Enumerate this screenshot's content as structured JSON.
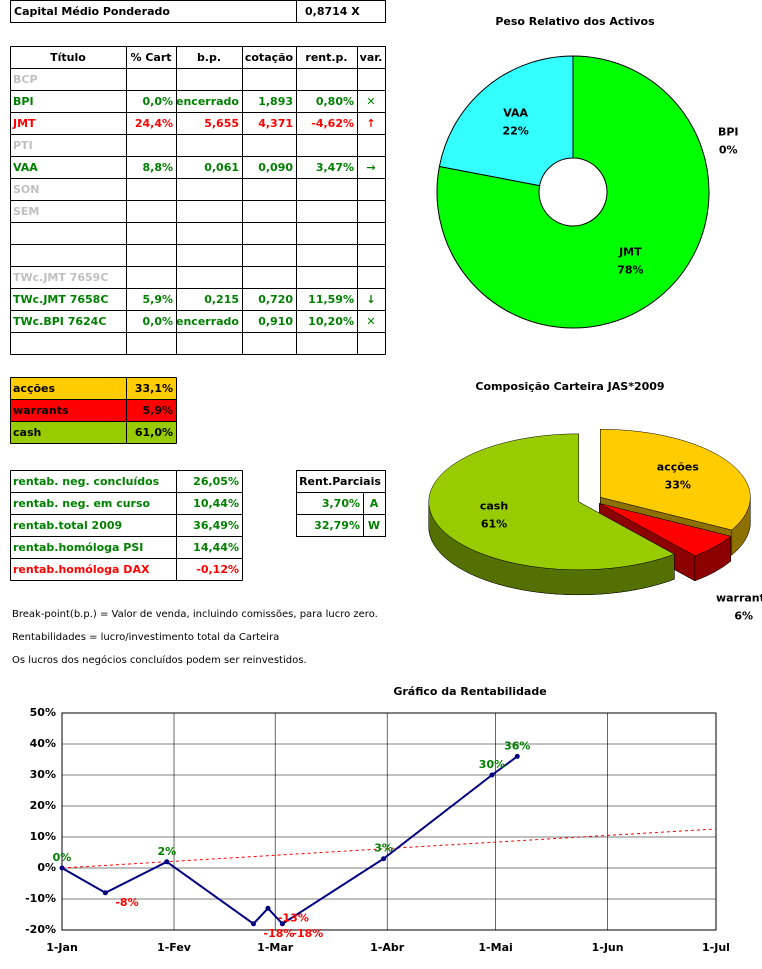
{
  "header": {
    "label": "Capital Médio Ponderado",
    "value": "0,8714 X"
  },
  "table": {
    "columns": [
      "Título",
      "% Cart",
      "b.p.",
      "cotação",
      "rent.p.",
      "var."
    ],
    "rows": [
      {
        "cells": [
          "BCP"
        ],
        "color": "#c0c0c0"
      },
      {
        "cells": [
          "BPI",
          "0,0%",
          "encerrado",
          "1,893",
          "0,80%",
          "✕"
        ],
        "color": "#008000"
      },
      {
        "cells": [
          "JMT",
          "24,4%",
          "5,655",
          "4,371",
          "-4,62%",
          "↑"
        ],
        "color": "#ff0000"
      },
      {
        "cells": [
          "PTI"
        ],
        "color": "#c0c0c0"
      },
      {
        "cells": [
          "VAA",
          "8,8%",
          "0,061",
          "0,090",
          "3,47%",
          "→"
        ],
        "color": "#008000"
      },
      {
        "cells": [
          "SON"
        ],
        "color": "#c0c0c0"
      },
      {
        "cells": [
          "SEM"
        ],
        "color": "#c0c0c0"
      },
      {
        "cells": []
      },
      {
        "cells": []
      },
      {
        "cells": [
          "TWc.JMT 7659C"
        ],
        "color": "#c0c0c0"
      },
      {
        "cells": [
          "TWc.JMT 7658C",
          "5,9%",
          "0,215",
          "0,720",
          "11,59%",
          "↓"
        ],
        "color": "#008000"
      },
      {
        "cells": [
          "TWc.BPI 7624C",
          "0,0%",
          "encerrado",
          "0,910",
          "10,20%",
          "✕"
        ],
        "color": "#008000"
      },
      {
        "cells": []
      }
    ]
  },
  "allocation": {
    "rows": [
      {
        "cells": [
          "acções",
          "33,1%"
        ],
        "color": "#ffcc00"
      },
      {
        "cells": [
          "warrants",
          "5,9%"
        ],
        "color": "#ff0000"
      },
      {
        "cells": [
          "cash",
          "61,0%"
        ],
        "color": "#99cc00"
      }
    ]
  },
  "returns": {
    "rows": [
      {
        "cells": [
          "rentab. neg. concluídos",
          "26,05%"
        ],
        "color": "#008000"
      },
      {
        "cells": [
          "rentab. neg. em curso",
          "10,44%"
        ],
        "color": "#008000"
      },
      {
        "cells": [
          "rentab.total 2009",
          "36,49%"
        ],
        "color": "#008000"
      },
      {
        "cells": [
          "rentab.homóloga PSI",
          "14,44%"
        ],
        "color": "#008000"
      },
      {
        "cells": [
          "rentab.homóloga DAX",
          "-0,12%"
        ],
        "color": "#ff0000"
      }
    ]
  },
  "partial": {
    "title": "Rent.Parciais",
    "rows": [
      [
        "3,70%",
        "A"
      ],
      [
        "32,79%",
        "W"
      ]
    ],
    "color": "#008000"
  },
  "notes": [
    "Break-point(b.p.) = Valor de venda, incluindo comissões, para lucro zero.",
    "Rentabilidades = lucro/investimento total da Carteira",
    "Os lucros dos negócios concluídos podem ser reinvestidos."
  ],
  "chart_data": [
    {
      "type": "donut",
      "title": "Peso Relativo dos Activos",
      "categories": [
        "BPI",
        "JMT",
        "VAA"
      ],
      "values": [
        0,
        78,
        22
      ],
      "value_labels": [
        "0%",
        "78%",
        "22%"
      ],
      "colors": [
        null,
        "#00ff00",
        "#33ffff"
      ]
    },
    {
      "type": "pie3d",
      "title": "Composição Carteira JAS*2009",
      "categories": [
        "acções",
        "warrants",
        "cash"
      ],
      "values": [
        33,
        6,
        61
      ],
      "value_labels": [
        "33%",
        "6%",
        "61%"
      ],
      "colors": [
        "#ffcc00",
        "#ff0000",
        "#99cc00"
      ]
    },
    {
      "type": "line",
      "title": "Gráfico da Rentabilidade",
      "x": [
        0,
        12,
        29,
        53,
        57,
        61,
        89,
        119,
        126
      ],
      "series": [
        {
          "color": "#000080",
          "values": [
            0,
            -8,
            2,
            -18,
            -13,
            -18,
            3,
            30,
            36
          ],
          "value_labels": [
            "0%",
            "-8%",
            "2%",
            "-18%",
            "-13%",
            "-18%",
            "3%",
            "30%",
            "36%"
          ]
        }
      ],
      "trendline": {
        "x": [
          0,
          181
        ],
        "values": [
          0,
          12.6
        ],
        "color": "#ff0000"
      },
      "positive_color": "#008000",
      "negative_color": "#ff0000",
      "xlim": [
        0,
        181
      ],
      "xticks": [
        {
          "value": 0,
          "label": "1-Jan"
        },
        {
          "value": 31,
          "label": "1-Fev"
        },
        {
          "value": 59,
          "label": "1-Mar"
        },
        {
          "value": 90,
          "label": "1-Abr"
        },
        {
          "value": 120,
          "label": "1-Mai"
        },
        {
          "value": 151,
          "label": "1-Jun"
        },
        {
          "value": 181,
          "label": "1-Jul"
        }
      ],
      "ylim": [
        -20,
        50
      ],
      "yticks": [
        {
          "value": -20,
          "label": "-20%"
        },
        {
          "value": -10,
          "label": "-10%"
        },
        {
          "value": 0,
          "label": "0%"
        },
        {
          "value": 10,
          "label": "10%"
        },
        {
          "value": 20,
          "label": "20%"
        },
        {
          "value": 30,
          "label": "30%"
        },
        {
          "value": 40,
          "label": "40%"
        },
        {
          "value": 50,
          "label": "50%"
        }
      ],
      "grid": true
    }
  ]
}
